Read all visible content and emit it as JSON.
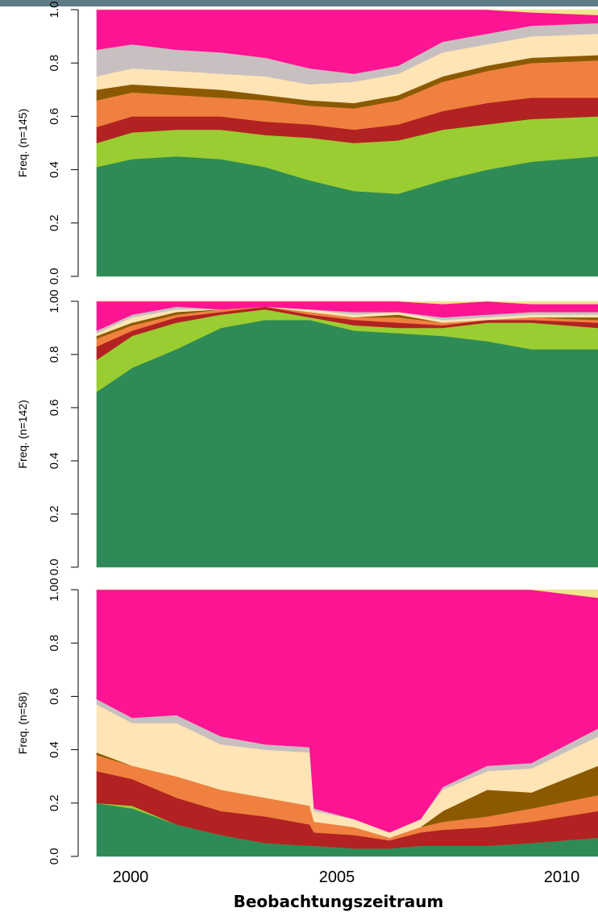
{
  "chart_data": {
    "type": "area",
    "stacked": true,
    "x_range": [
      1999.7,
      2011.0
    ],
    "xlabel": "Beobachtungszeitraum",
    "xticks": [
      "2000",
      "2005",
      "2010"
    ],
    "xtick_values": [
      2000,
      2005,
      2010
    ],
    "categories_colors": [
      "#2e8b57",
      "#9acd32",
      "#b22222",
      "#f08040",
      "#8b5a00",
      "#ffe4b5",
      "#c8c0c0",
      "#ff1493",
      "#f0e68c"
    ],
    "panels": [
      {
        "ylabel": "Freq. (n=145)",
        "ylim": [
          0,
          1
        ],
        "yticks": [
          "0.0",
          "0.2",
          "0.4",
          "0.6",
          "0.8",
          "1.0"
        ],
        "x": [
          1999.7,
          2000.5,
          2001.5,
          2002.5,
          2003.5,
          2004.5,
          2005.5,
          2006.5,
          2007.5,
          2008.5,
          2009.5,
          2011.0
        ],
        "series": [
          {
            "color": "#2e8b57",
            "values": [
              0.41,
              0.44,
              0.45,
              0.44,
              0.41,
              0.36,
              0.32,
              0.31,
              0.36,
              0.4,
              0.43,
              0.45
            ]
          },
          {
            "color": "#9acd32",
            "values": [
              0.09,
              0.1,
              0.1,
              0.11,
              0.12,
              0.16,
              0.18,
              0.2,
              0.19,
              0.17,
              0.16,
              0.15
            ]
          },
          {
            "color": "#b22222",
            "values": [
              0.06,
              0.06,
              0.05,
              0.05,
              0.05,
              0.05,
              0.05,
              0.06,
              0.07,
              0.08,
              0.08,
              0.07
            ]
          },
          {
            "color": "#f08040",
            "values": [
              0.1,
              0.09,
              0.08,
              0.07,
              0.08,
              0.07,
              0.08,
              0.09,
              0.11,
              0.12,
              0.13,
              0.14
            ]
          },
          {
            "color": "#8b5a00",
            "values": [
              0.04,
              0.03,
              0.03,
              0.03,
              0.02,
              0.02,
              0.02,
              0.02,
              0.02,
              0.02,
              0.02,
              0.02
            ]
          },
          {
            "color": "#ffe4b5",
            "values": [
              0.05,
              0.06,
              0.06,
              0.06,
              0.07,
              0.06,
              0.08,
              0.08,
              0.09,
              0.08,
              0.08,
              0.08
            ]
          },
          {
            "color": "#c8c0c0",
            "values": [
              0.1,
              0.09,
              0.08,
              0.08,
              0.07,
              0.06,
              0.03,
              0.03,
              0.04,
              0.04,
              0.04,
              0.04
            ]
          },
          {
            "color": "#ff1493",
            "values": [
              0.15,
              0.13,
              0.15,
              0.16,
              0.18,
              0.22,
              0.24,
              0.21,
              0.12,
              0.09,
              0.05,
              0.03
            ]
          },
          {
            "color": "#f0e68c",
            "values": [
              0.0,
              0.0,
              0.0,
              0.0,
              0.0,
              0.0,
              0.0,
              0.0,
              0.0,
              0.0,
              0.01,
              0.02
            ]
          }
        ]
      },
      {
        "ylabel": "Freq. (n=142)",
        "ylim": [
          0,
          1
        ],
        "yticks": [
          "0.0",
          "0.2",
          "0.4",
          "0.6",
          "0.8",
          "1.00"
        ],
        "x": [
          1999.7,
          2000.5,
          2001.5,
          2002.5,
          2003.5,
          2004.5,
          2005.5,
          2006.5,
          2007.5,
          2008.5,
          2009.5,
          2011.0
        ],
        "series": [
          {
            "color": "#2e8b57",
            "values": [
              0.66,
              0.75,
              0.82,
              0.9,
              0.93,
              0.93,
              0.89,
              0.88,
              0.87,
              0.85,
              0.82,
              0.82
            ]
          },
          {
            "color": "#9acd32",
            "values": [
              0.12,
              0.12,
              0.1,
              0.05,
              0.04,
              0.01,
              0.02,
              0.02,
              0.03,
              0.07,
              0.1,
              0.08
            ]
          },
          {
            "color": "#b22222",
            "values": [
              0.05,
              0.02,
              0.02,
              0.01,
              0.01,
              0.01,
              0.02,
              0.02,
              0.01,
              0.01,
              0.01,
              0.02
            ]
          },
          {
            "color": "#f08040",
            "values": [
              0.03,
              0.02,
              0.01,
              0.01,
              0.0,
              0.01,
              0.01,
              0.02,
              0.01,
              0.0,
              0.01,
              0.01
            ]
          },
          {
            "color": "#8b5a00",
            "values": [
              0.01,
              0.01,
              0.01,
              0.0,
              0.0,
              0.0,
              0.0,
              0.01,
              0.0,
              0.0,
              0.0,
              0.01
            ]
          },
          {
            "color": "#ffe4b5",
            "values": [
              0.01,
              0.02,
              0.01,
              0.0,
              0.0,
              0.01,
              0.01,
              0.01,
              0.01,
              0.01,
              0.01,
              0.01
            ]
          },
          {
            "color": "#c8c0c0",
            "values": [
              0.01,
              0.01,
              0.01,
              0.0,
              0.0,
              0.0,
              0.01,
              0.0,
              0.01,
              0.01,
              0.01,
              0.01
            ]
          },
          {
            "color": "#ff1493",
            "values": [
              0.11,
              0.05,
              0.02,
              0.03,
              0.02,
              0.03,
              0.04,
              0.04,
              0.05,
              0.05,
              0.03,
              0.03
            ]
          },
          {
            "color": "#f0e68c",
            "values": [
              0.0,
              0.0,
              0.0,
              0.0,
              0.0,
              0.0,
              0.0,
              0.0,
              0.01,
              0.0,
              0.01,
              0.01
            ]
          }
        ]
      },
      {
        "ylabel": "Freq. (n=58)",
        "ylim": [
          0,
          1
        ],
        "yticks": [
          "0.0",
          "0.2",
          "0.4",
          "0.6",
          "0.8",
          "1.00"
        ],
        "x": [
          1999.7,
          2000.5,
          2001.5,
          2002.5,
          2003.5,
          2004.5,
          2004.6,
          2005.5,
          2006.3,
          2007.0,
          2007.5,
          2008.5,
          2009.5,
          2011.0
        ],
        "series": [
          {
            "color": "#2e8b57",
            "values": [
              0.2,
              0.18,
              0.12,
              0.08,
              0.05,
              0.04,
              0.04,
              0.03,
              0.03,
              0.04,
              0.04,
              0.04,
              0.05,
              0.07
            ]
          },
          {
            "color": "#9acd32",
            "values": [
              0.0,
              0.01,
              0.0,
              0.0,
              0.0,
              0.0,
              0.0,
              0.0,
              0.0,
              0.0,
              0.0,
              0.0,
              0.0,
              0.0
            ]
          },
          {
            "color": "#b22222",
            "values": [
              0.12,
              0.1,
              0.1,
              0.09,
              0.1,
              0.08,
              0.05,
              0.05,
              0.03,
              0.05,
              0.06,
              0.07,
              0.08,
              0.1
            ]
          },
          {
            "color": "#f08040",
            "values": [
              0.06,
              0.05,
              0.08,
              0.08,
              0.07,
              0.07,
              0.04,
              0.03,
              0.01,
              0.02,
              0.03,
              0.04,
              0.05,
              0.06
            ]
          },
          {
            "color": "#8b5a00",
            "values": [
              0.01,
              0.0,
              0.0,
              0.0,
              0.0,
              0.0,
              0.0,
              0.0,
              0.0,
              0.0,
              0.04,
              0.1,
              0.06,
              0.11
            ]
          },
          {
            "color": "#ffe4b5",
            "values": [
              0.18,
              0.16,
              0.2,
              0.17,
              0.18,
              0.2,
              0.04,
              0.03,
              0.02,
              0.03,
              0.08,
              0.07,
              0.09,
              0.11
            ]
          },
          {
            "color": "#c8c0c0",
            "values": [
              0.02,
              0.02,
              0.03,
              0.03,
              0.02,
              0.02,
              0.01,
              0.0,
              0.0,
              0.0,
              0.01,
              0.02,
              0.02,
              0.03
            ]
          },
          {
            "color": "#ff1493",
            "values": [
              0.41,
              0.48,
              0.47,
              0.55,
              0.58,
              0.59,
              0.82,
              0.86,
              0.91,
              0.86,
              0.74,
              0.66,
              0.65,
              0.49
            ]
          },
          {
            "color": "#f0e68c",
            "values": [
              0.0,
              0.0,
              0.0,
              0.0,
              0.0,
              0.0,
              0.0,
              0.0,
              0.0,
              0.0,
              0.0,
              0.0,
              0.0,
              0.03
            ]
          }
        ]
      }
    ]
  }
}
